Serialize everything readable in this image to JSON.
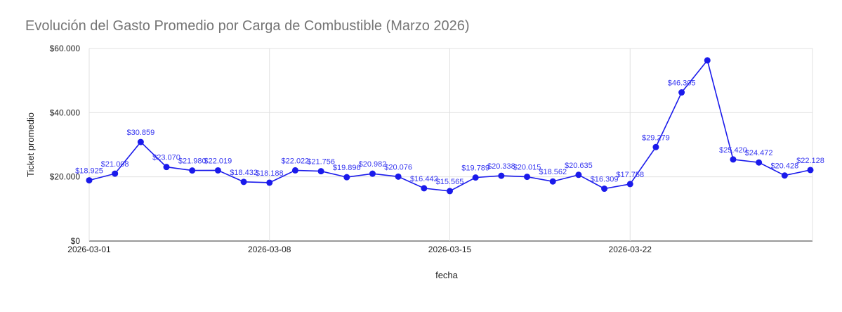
{
  "chart_data": {
    "type": "line",
    "title": "Evolución del Gasto Promedio por Carga de Combustible (Marzo 2026)",
    "xlabel": "fecha",
    "ylabel": "Ticket promedio",
    "ylim": [
      0,
      60000
    ],
    "yticks": [
      "$0",
      "$20.000",
      "$40.000",
      "$60.000"
    ],
    "ytick_values": [
      0,
      20000,
      40000,
      60000
    ],
    "xticks": [
      "2026-03-01",
      "2026-03-08",
      "2026-03-15",
      "2026-03-22"
    ],
    "grid": true,
    "legend": "none",
    "series_color": "#1a1aeb",
    "x": [
      "2026-03-01",
      "2026-03-02",
      "2026-03-03",
      "2026-03-04",
      "2026-03-05",
      "2026-03-06",
      "2026-03-07",
      "2026-03-08",
      "2026-03-09",
      "2026-03-10",
      "2026-03-11",
      "2026-03-12",
      "2026-03-13",
      "2026-03-14",
      "2026-03-15",
      "2026-03-16",
      "2026-03-17",
      "2026-03-18",
      "2026-03-19",
      "2026-03-20",
      "2026-03-21",
      "2026-03-22",
      "2026-03-23",
      "2026-03-24",
      "2026-03-25",
      "2026-03-26",
      "2026-03-27",
      "2026-03-28",
      "2026-03-29"
    ],
    "series": [
      {
        "name": "Ticket promedio",
        "values": [
          18925,
          21008,
          30859,
          23070,
          21980,
          22019,
          18432,
          18188,
          22022,
          21756,
          19896,
          20982,
          20076,
          16442,
          15565,
          19789,
          20338,
          20015,
          18562,
          20635,
          16309,
          17758,
          29279,
          46305,
          56300,
          25420,
          24472,
          20428,
          22128
        ],
        "labels": [
          "$18.925",
          "$21.008",
          "$30.859",
          "$23.070",
          "$21.980",
          "$22.019",
          "$18.432",
          "$18.188",
          "$22.022",
          "$21.756",
          "$19.896",
          "$20.982",
          "$20.076",
          "$16.442",
          "$15.565",
          "$19.789",
          "$20.338",
          "$20.015",
          "$18.562",
          "$20.635",
          "$16.309",
          "$17.758",
          "$29.279",
          "$46.305",
          "",
          "$25.420",
          "$24.472",
          "$20.428",
          "$22.128"
        ]
      }
    ]
  }
}
